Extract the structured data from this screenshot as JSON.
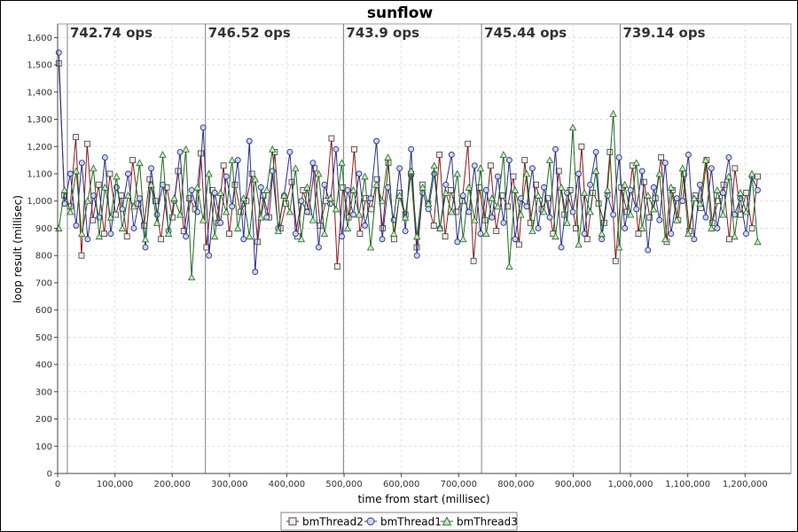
{
  "chart_data": {
    "type": "scatter",
    "title": "sunflow",
    "xlabel": "time from start (millisec)",
    "ylabel": "loop result (millisec)",
    "xlim": [
      0,
      1280000
    ],
    "ylim": [
      0,
      1650
    ],
    "x_ticks": [
      0,
      100000,
      200000,
      300000,
      400000,
      500000,
      600000,
      700000,
      800000,
      900000,
      1000000,
      1100000,
      1200000
    ],
    "x_tick_labels": [
      "0",
      "100,000",
      "200,000",
      "300,000",
      "400,000",
      "500,000",
      "600,000",
      "700,000",
      "800,000",
      "900,000",
      "1,000,000",
      "1,100,000",
      "1,200,000"
    ],
    "y_ticks": [
      0,
      100,
      200,
      300,
      400,
      500,
      600,
      700,
      800,
      900,
      1000,
      1100,
      1200,
      1300,
      1400,
      1500,
      1600
    ],
    "y_tick_labels": [
      "0",
      "100",
      "200",
      "300",
      "400",
      "500",
      "600",
      "700",
      "800",
      "900",
      "1,000",
      "1,100",
      "1,200",
      "1,300",
      "1,400",
      "1,500",
      "1,600"
    ],
    "grid": true,
    "legend_position": "bottom",
    "iteration_markers": [
      {
        "x": 17000,
        "label": "742.74 ops"
      },
      {
        "x": 258000,
        "label": "746.52 ops"
      },
      {
        "x": 499000,
        "label": "743.9 ops"
      },
      {
        "x": 740000,
        "label": "745.44 ops"
      },
      {
        "x": 982000,
        "label": "739.14 ops"
      }
    ],
    "series": [
      {
        "name": "bmThread2",
        "marker": "square",
        "line_color": "#8b1a1a",
        "marker_fill": "#f2ece6",
        "marker_stroke": "#3a3a3a",
        "x_start": 2000,
        "x_end": 1222000,
        "values": [
          1505,
          1020,
          980,
          1235,
          800,
          1210,
          930,
          1060,
          880,
          1100,
          950,
          1020,
          870,
          1150,
          990,
          910,
          1080,
          1000,
          860,
          1050,
          940,
          1110,
          890,
          1010,
          970,
          1175,
          830,
          1040,
          920,
          1130,
          880,
          1060,
          960,
          1000,
          1100,
          850,
          1020,
          940,
          1180,
          900,
          990,
          1070,
          870,
          1040,
          960,
          1120,
          910,
          1000,
          1230,
          760,
          1050,
          940,
          1190,
          880,
          1010,
          970,
          1080,
          900,
          1140,
          860,
          1030,
          950,
          1100,
          830,
          1060,
          990,
          910,
          1170,
          870,
          1040,
          960,
          1000,
          1210,
          780,
          1050,
          930,
          1130,
          890,
          1020,
          980,
          1090,
          840,
          1150,
          920,
          1060,
          970,
          1010,
          880,
          1110,
          950,
          1040,
          900,
          1200,
          860,
          1030,
          990,
          920,
          1180,
          780,
          1050,
          960,
          1130,
          880,
          1070,
          940,
          1010,
          1160,
          850,
          1040,
          930,
          1100,
          890,
          1020,
          975,
          1150,
          920,
          1000,
          1060,
          860,
          1120,
          950,
          1030,
          900,
          1090
        ]
      },
      {
        "name": "bmThread1",
        "marker": "circle",
        "line_color": "#2b2f8c",
        "marker_fill": "#c9d8f0",
        "marker_stroke": "#2b2f8c",
        "x_start": 2000,
        "x_end": 1222000,
        "values": [
          1545,
          990,
          1100,
          910,
          1140,
          860,
          1020,
          940,
          1160,
          880,
          1050,
          970,
          1100,
          900,
          1010,
          830,
          1120,
          950,
          1060,
          890,
          1000,
          1180,
          870,
          1040,
          960,
          1270,
          800,
          1030,
          920,
          1090,
          980,
          1150,
          860,
          1220,
          740,
          1050,
          940,
          1110,
          900,
          1020,
          1180,
          880,
          1000,
          960,
          1140,
          830,
          1060,
          990,
          1190,
          870,
          1040,
          950,
          1100,
          910,
          1010,
          1220,
          860,
          1050,
          930,
          1120,
          890,
          1190,
          800,
          1030,
          970,
          1100,
          900,
          1060,
          1170,
          850,
          1020,
          960,
          1130,
          880,
          1040,
          940,
          1090,
          920,
          1150,
          860,
          1010,
          980,
          1120,
          900,
          1050,
          940,
          1190,
          830,
          1030,
          960,
          1100,
          880,
          1060,
          1180,
          860,
          1020,
          950,
          1160,
          900,
          1040,
          970,
          1110,
          820,
          1050,
          930,
          1140,
          880,
          1010,
          1000,
          1170,
          860,
          1060,
          940,
          1120,
          900,
          1030,
          1160,
          950,
          1010,
          880,
          1090,
          1040
        ]
      },
      {
        "name": "bmThread3",
        "marker": "triangle",
        "line_color": "#1e6b1e",
        "marker_fill": "#c9ebc4",
        "marker_stroke": "#1e6b1e",
        "x_start": 2000,
        "x_end": 1222000,
        "values": [
          900,
          1040,
          960,
          1110,
          880,
          1000,
          1120,
          870,
          1050,
          940,
          1090,
          900,
          1020,
          980,
          1140,
          860,
          1060,
          920,
          1170,
          880,
          1010,
          950,
          1190,
          720,
          1050,
          930,
          1100,
          870,
          1030,
          960,
          1150,
          900,
          1010,
          870,
          1080,
          940,
          1040,
          1190,
          890,
          1020,
          960,
          1120,
          860,
          1050,
          930,
          1100,
          880,
          1010,
          970,
          1140,
          900,
          1040,
          950,
          1090,
          830,
          1060,
          1000,
          1160,
          880,
          1020,
          940,
          1110,
          870,
          1050,
          990,
          1130,
          900,
          1030,
          960,
          1100,
          860,
          1050,
          930,
          1120,
          880,
          1010,
          980,
          1170,
          760,
          1040,
          950,
          1100,
          890,
          1020,
          960,
          1150,
          870,
          1050,
          920,
          1270,
          840,
          1030,
          960,
          1110,
          880,
          1040,
          1320,
          830,
          1060,
          950,
          1140,
          900,
          1020,
          970,
          1100,
          860,
          1050,
          930,
          1120,
          880,
          1010,
          990,
          1150,
          900,
          1040,
          950,
          1090,
          870,
          1030,
          960,
          1100,
          850
        ]
      }
    ]
  }
}
